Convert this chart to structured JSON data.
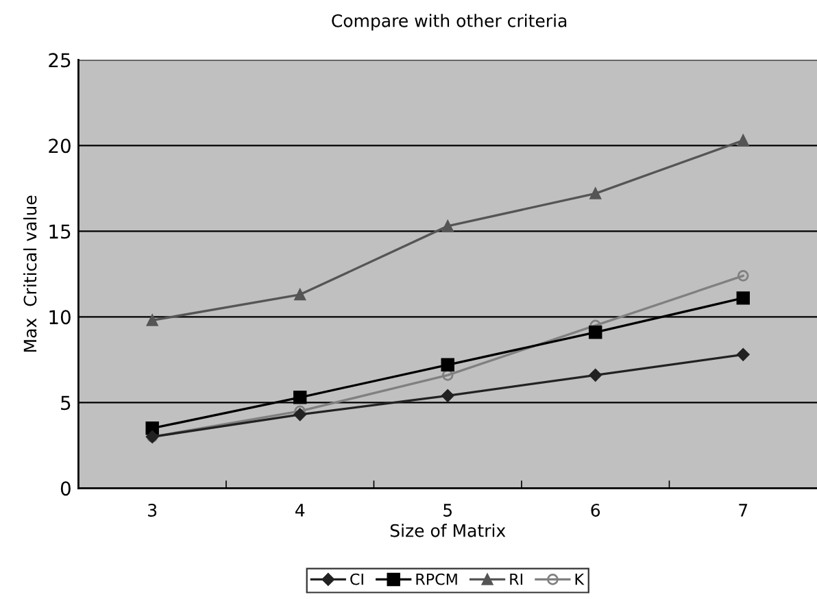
{
  "chart_data": {
    "type": "line",
    "title": "Compare with other criteria",
    "xlabel": "Size of Matrix",
    "ylabel": "Max  Critical value",
    "categories": [
      "3",
      "4",
      "5",
      "6",
      "7"
    ],
    "series": [
      {
        "name": "CI",
        "color": "#222222",
        "marker": "diamond",
        "values": [
          3.0,
          4.3,
          5.4,
          6.6,
          7.8
        ]
      },
      {
        "name": "RPCM",
        "color": "#000000",
        "marker": "square",
        "values": [
          3.5,
          5.3,
          7.2,
          9.1,
          11.1
        ]
      },
      {
        "name": "RI",
        "color": "#555555",
        "marker": "triangle",
        "values": [
          9.8,
          11.3,
          15.3,
          17.2,
          20.3
        ]
      },
      {
        "name": "K",
        "color": "#808080",
        "marker": "circle",
        "values": [
          3.0,
          4.5,
          6.6,
          9.5,
          12.4
        ]
      }
    ],
    "ylim": [
      0,
      25
    ],
    "yticks": [
      0,
      5,
      10,
      15,
      20,
      25
    ],
    "grid": "y",
    "legend": "bottom"
  }
}
